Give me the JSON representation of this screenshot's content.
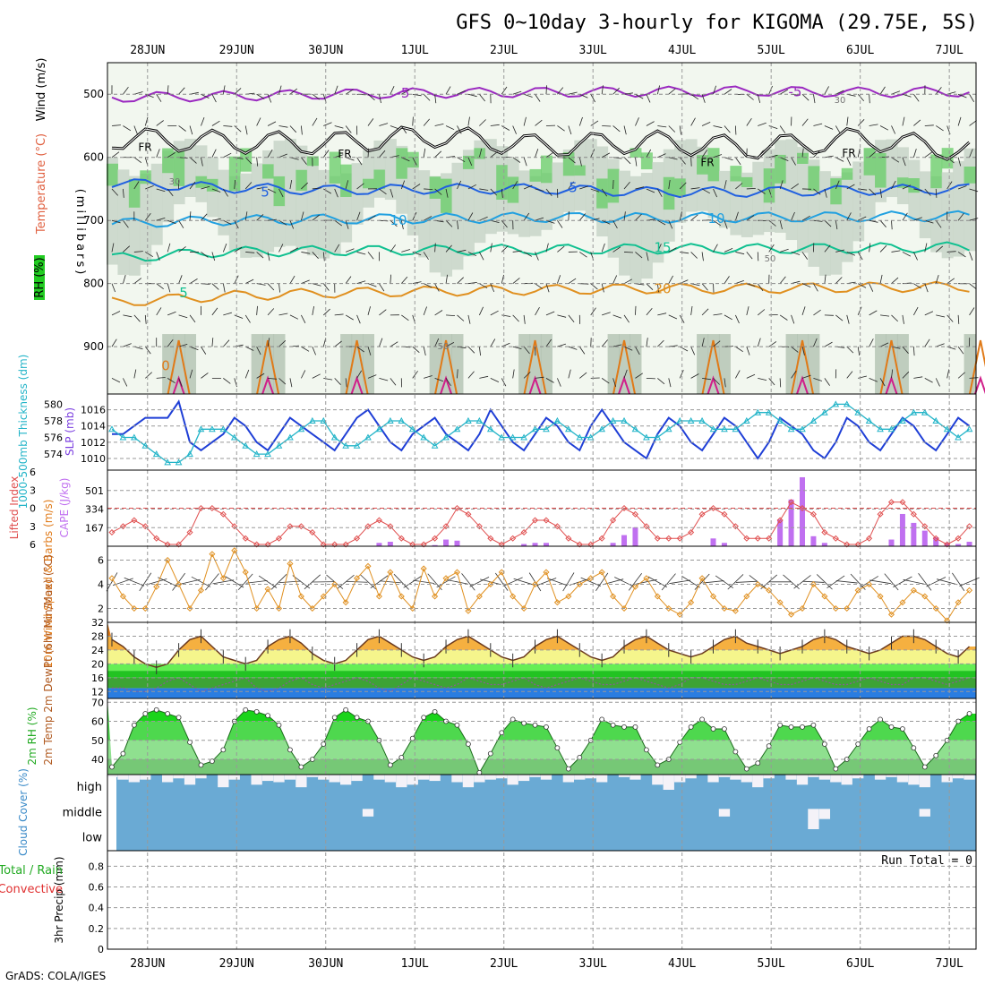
{
  "title": "GFS 0~10day 3-hourly for KIGOMA (29.75E, 5S)",
  "credit": "GrADS: COLA/IGES",
  "chart_data": {
    "type": "meteogram",
    "dates": [
      "28JUN",
      "29JUN",
      "30JUN",
      "1JUL",
      "2JUL",
      "3JUL",
      "4JUL",
      "5JUL",
      "6JUL",
      "7JUL"
    ],
    "x_range_days": [
      -0.45,
      9.3
    ],
    "upper_air": {
      "ylabel": "(millibars)",
      "legend_labels": [
        "Wind (m/s)",
        "Temperature (°C)",
        "RH (%)"
      ],
      "pressure_ticks": [
        500,
        600,
        700,
        800,
        900
      ],
      "pressure_range": [
        450,
        975
      ],
      "freezing_label": "FR",
      "contour_labels": [
        "-5",
        "5",
        "10",
        "15",
        "20",
        "30",
        "50",
        "0"
      ],
      "isotherms": [
        {
          "temp": -5,
          "color": "#9a28c0",
          "levels": [
            505,
            503,
            500,
            498,
            497,
            496,
            495,
            497,
            496
          ]
        },
        {
          "temp": 0,
          "color": "#000000",
          "levels": [
            570,
            575,
            578,
            566,
            582,
            575,
            585,
            570,
            590
          ]
        },
        {
          "temp": 5,
          "color": "#2060e0",
          "levels": [
            640,
            648,
            652,
            650,
            650,
            655,
            655,
            652,
            650
          ]
        },
        {
          "temp": 10,
          "color": "#20a0e0",
          "levels": [
            705,
            700,
            698,
            697,
            695,
            696,
            695,
            694,
            693
          ]
        },
        {
          "temp": 15,
          "color": "#10c090",
          "levels": [
            760,
            750,
            748,
            747,
            746,
            745,
            745,
            744,
            742
          ]
        },
        {
          "temp": 20,
          "color": "#e09020",
          "levels": [
            830,
            820,
            815,
            812,
            810,
            808,
            808,
            806,
            805
          ]
        }
      ]
    },
    "thickness_slp": {
      "ylabel_left": "1000-500mb Thickness (dm)",
      "ylabel_right": "SLP (mb)",
      "thickness_ticks": [
        574,
        576,
        578,
        580
      ],
      "slp_ticks": [
        1010,
        1012,
        1014,
        1016
      ],
      "slp": [
        1013,
        1013,
        1014,
        1015,
        1015,
        1015,
        1017,
        1012,
        1011,
        1012,
        1013,
        1015,
        1014,
        1012,
        1011,
        1013,
        1015,
        1014,
        1013,
        1012,
        1011,
        1013,
        1015,
        1016,
        1014,
        1012,
        1011,
        1013,
        1014,
        1015,
        1013,
        1012,
        1011,
        1013,
        1016,
        1014,
        1012,
        1011,
        1013,
        1015,
        1014,
        1012,
        1011,
        1014,
        1016,
        1014,
        1012,
        1011,
        1010,
        1013,
        1015,
        1014,
        1012,
        1011,
        1013,
        1015,
        1014,
        1012,
        1010,
        1012,
        1015,
        1014,
        1013,
        1011,
        1010,
        1012,
        1015,
        1014,
        1012,
        1011,
        1013,
        1015,
        1014,
        1012,
        1011,
        1013,
        1015,
        1014
      ],
      "thickness": [
        577,
        576,
        576,
        575,
        574,
        573,
        573,
        574,
        577,
        577,
        577,
        576,
        575,
        574,
        574,
        575,
        576,
        577,
        578,
        578,
        576,
        575,
        575,
        576,
        577,
        578,
        578,
        577,
        576,
        575,
        576,
        577,
        578,
        578,
        577,
        576,
        576,
        576,
        577,
        577,
        578,
        577,
        576,
        576,
        577,
        578,
        578,
        577,
        576,
        576,
        577,
        578,
        578,
        578,
        577,
        577,
        577,
        578,
        579,
        579,
        578,
        577,
        577,
        578,
        579,
        580,
        580,
        579,
        578,
        577,
        577,
        578,
        579,
        579,
        578,
        577,
        576,
        577
      ]
    },
    "cape_li": {
      "ylabel_left": "Lifted Index",
      "ylabel_right": "CAPE (J/kg)",
      "li_ticks": [
        -6,
        -3,
        0,
        3,
        6
      ],
      "cape_ticks": [
        167,
        334,
        501
      ],
      "lifted_index": [
        4,
        3,
        2,
        3,
        5,
        6,
        6,
        4,
        0,
        0,
        1,
        3,
        5,
        6,
        6,
        5,
        3,
        3,
        4,
        6,
        6,
        6,
        5,
        3,
        2,
        3,
        5,
        6,
        6,
        5,
        3,
        0,
        1,
        3,
        5,
        6,
        5,
        4,
        2,
        2,
        3,
        5,
        6,
        6,
        5,
        2,
        0,
        1,
        3,
        5,
        5,
        5,
        4,
        1,
        0,
        1,
        3,
        5,
        5,
        5,
        2,
        -1,
        0,
        1,
        4,
        5,
        6,
        6,
        5,
        1,
        -1,
        -1,
        1,
        3,
        5,
        6,
        5,
        3
      ],
      "cape": [
        0,
        0,
        0,
        0,
        0,
        0,
        0,
        0,
        0,
        0,
        0,
        0,
        0,
        0,
        0,
        0,
        0,
        0,
        0,
        0,
        0,
        0,
        0,
        0,
        30,
        40,
        0,
        0,
        0,
        10,
        60,
        50,
        0,
        0,
        0,
        0,
        0,
        20,
        30,
        30,
        0,
        0,
        0,
        0,
        0,
        30,
        100,
        170,
        0,
        0,
        0,
        0,
        0,
        0,
        70,
        30,
        0,
        0,
        0,
        0,
        240,
        420,
        620,
        90,
        30,
        0,
        0,
        0,
        0,
        0,
        60,
        290,
        210,
        140,
        80,
        30,
        20,
        40
      ]
    },
    "wind10m": {
      "ylabel": "10m Wind Speed & Barbs (m/s)",
      "speed_ticks": [
        2,
        4,
        6
      ],
      "speed": [
        4.5,
        3,
        2,
        2,
        3.8,
        6,
        4,
        2,
        3.5,
        6.5,
        4.5,
        6.8,
        5,
        2,
        3.6,
        2,
        5.7,
        3,
        2,
        3,
        4,
        2.5,
        4.5,
        5.5,
        3,
        5,
        3,
        2,
        5.3,
        3,
        4.5,
        5,
        1.8,
        3,
        4,
        5,
        3,
        2,
        4,
        5,
        2.5,
        3,
        4,
        4.5,
        5,
        3,
        2,
        3.8,
        4.5,
        3,
        2,
        1.5,
        2.5,
        4.5,
        3,
        2,
        1.8,
        3,
        4,
        3.5,
        2.5,
        1.5,
        2,
        4,
        3,
        2,
        2,
        3.5,
        4,
        3,
        1.5,
        2.5,
        3.5,
        3,
        2,
        1,
        2.5,
        3.5
      ]
    },
    "temp2m": {
      "ylabel": "2m Temp 2m DewPt (6hr Min/Max) (°C)",
      "ticks": [
        12,
        16,
        20,
        24,
        28,
        32
      ],
      "temp": [
        27,
        25,
        22,
        20,
        19,
        20,
        24,
        27,
        28,
        25,
        22,
        21,
        20,
        21,
        25,
        27,
        28,
        26,
        23,
        21,
        20,
        21,
        24,
        27,
        28,
        26,
        24,
        22,
        21,
        22,
        25,
        27,
        28,
        26,
        24,
        22,
        21,
        22,
        25,
        27,
        28,
        26,
        24,
        22,
        21,
        22,
        25,
        27,
        28,
        26,
        24,
        23,
        22,
        23,
        25,
        27,
        28,
        26,
        25,
        24,
        23,
        24,
        25,
        27,
        28,
        27,
        25,
        24,
        23,
        24,
        26,
        28,
        28,
        27,
        25,
        23,
        22,
        25
      ],
      "dewpoint": [
        13,
        13,
        12,
        12,
        13,
        15,
        16,
        14,
        12,
        13,
        14,
        15,
        16,
        13,
        12,
        13,
        15,
        16,
        14,
        13,
        14,
        15,
        16,
        15,
        13,
        12,
        14,
        16,
        15,
        14,
        13,
        14,
        16,
        15,
        14,
        14,
        15,
        16,
        14,
        13,
        14,
        15,
        16,
        15,
        14,
        14,
        15,
        16,
        15,
        14,
        13,
        14,
        16,
        16,
        15,
        14,
        14,
        15,
        16,
        15,
        14,
        14,
        15,
        16,
        15,
        14,
        14,
        15,
        16,
        15,
        14,
        14,
        16,
        16,
        15,
        14,
        15,
        16
      ],
      "bands": [
        {
          "from": 10,
          "to": 13,
          "color": "#2a7de1"
        },
        {
          "from": 13,
          "to": 16,
          "color": "#3da335"
        },
        {
          "from": 16,
          "to": 18,
          "color": "#22c322"
        },
        {
          "from": 18,
          "to": 20,
          "color": "#66ee55"
        },
        {
          "from": 20,
          "to": 24,
          "color": "#f5f58c"
        },
        {
          "from": 24,
          "to": 28,
          "color": "#f5b040"
        },
        {
          "from": 28,
          "to": 32,
          "color": "#e07a18"
        }
      ]
    },
    "rh2m": {
      "ylabel": "2m RH (%)",
      "ticks": [
        40,
        50,
        60,
        70
      ],
      "values": [
        36,
        43,
        58,
        64,
        66,
        64,
        62,
        49,
        37,
        39,
        45,
        60,
        66,
        65,
        63,
        58,
        45,
        36,
        40,
        48,
        62,
        66,
        62,
        60,
        50,
        37,
        41,
        51,
        62,
        65,
        60,
        58,
        48,
        33,
        43,
        54,
        61,
        59,
        58,
        57,
        46,
        35,
        41,
        50,
        61,
        58,
        57,
        57,
        45,
        37,
        40,
        49,
        57,
        61,
        56,
        56,
        44,
        35,
        38,
        47,
        58,
        57,
        57,
        58,
        48,
        35,
        40,
        48,
        56,
        61,
        57,
        56,
        46,
        36,
        42,
        50,
        60,
        64
      ]
    },
    "cloud": {
      "ylabel": "Cloud Cover (%)",
      "levels": [
        "high",
        "middle",
        "low"
      ],
      "high": [
        90,
        80,
        70,
        80,
        100,
        70,
        85,
        60,
        85,
        100,
        50,
        80,
        100,
        60,
        75,
        70,
        80,
        50,
        90,
        80,
        70,
        60,
        75,
        100,
        80,
        70,
        50,
        60,
        80,
        75,
        100,
        70,
        50,
        70,
        80,
        85,
        60,
        75,
        90,
        80,
        100,
        70,
        80,
        85,
        70,
        100,
        90,
        80,
        100,
        60,
        40,
        70,
        85,
        100,
        70,
        90,
        80,
        70,
        50,
        85,
        100,
        80,
        60,
        90,
        80,
        70,
        60,
        85,
        100,
        80,
        90,
        70,
        60,
        50,
        100,
        70,
        85,
        80
      ],
      "middle": [
        0,
        0,
        0,
        0,
        0,
        0,
        0,
        0,
        0,
        0,
        0,
        0,
        0,
        0,
        0,
        0,
        0,
        0,
        0,
        0,
        0,
        0,
        0,
        30,
        0,
        0,
        0,
        0,
        0,
        0,
        0,
        0,
        0,
        0,
        0,
        0,
        0,
        0,
        0,
        0,
        0,
        0,
        0,
        0,
        0,
        0,
        0,
        0,
        0,
        0,
        0,
        0,
        0,
        0,
        0,
        30,
        0,
        0,
        0,
        0,
        0,
        0,
        0,
        80,
        40,
        0,
        0,
        0,
        0,
        0,
        0,
        0,
        0,
        30,
        0,
        0,
        0,
        0
      ],
      "low": [
        0,
        0,
        0,
        0,
        0,
        0,
        0,
        0,
        0,
        0,
        0,
        0,
        0,
        0,
        0,
        0,
        0,
        0,
        0,
        0,
        0,
        0,
        0,
        0,
        0,
        0,
        0,
        0,
        0,
        0,
        0,
        0,
        0,
        0,
        0,
        0,
        0,
        0,
        0,
        0,
        0,
        0,
        0,
        0,
        0,
        0,
        0,
        0,
        0,
        0,
        0,
        0,
        0,
        0,
        0,
        0,
        0,
        0,
        0,
        0,
        0,
        0,
        0,
        0,
        0,
        0,
        0,
        0,
        0,
        0,
        0,
        0,
        0,
        0,
        0,
        0,
        0,
        0
      ]
    },
    "precip": {
      "ylabel": "3hr Precip (mm)",
      "legend_labels": [
        "Total / Rain",
        "Convective"
      ],
      "ticks": [
        "0",
        "0.2",
        "0.4",
        "0.6",
        "0.8"
      ],
      "run_total_label": "Run Total = 0",
      "values": []
    }
  }
}
